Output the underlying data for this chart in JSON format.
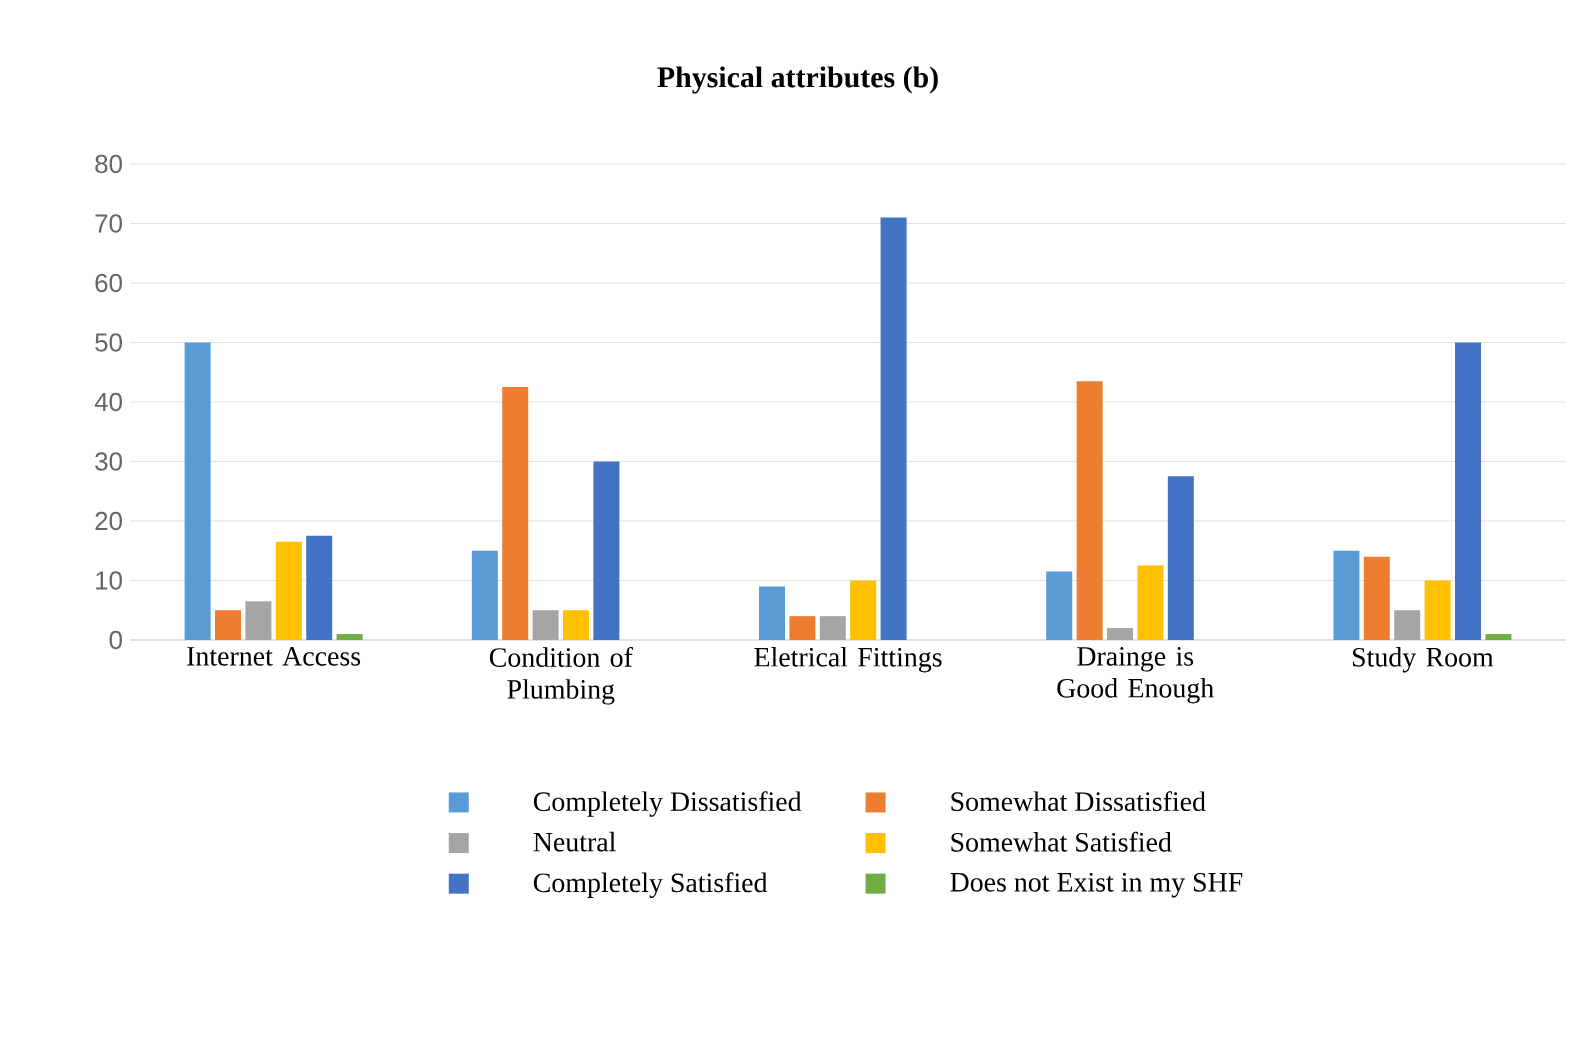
{
  "chart_data": {
    "type": "bar",
    "title": "Physical attributes (b)",
    "categories": [
      "Internet Access",
      "Condition of Plumbing",
      "Eletrical Fittings",
      "Drainge is Good Enough",
      "Study Room"
    ],
    "series": [
      {
        "name": "Completely Dissatisfied",
        "color": "#5b9bd5",
        "values": [
          50,
          15,
          9,
          11.5,
          15
        ]
      },
      {
        "name": "Somewhat Dissatisfied",
        "color": "#ed7d31",
        "values": [
          5,
          42.5,
          4,
          43.5,
          14
        ]
      },
      {
        "name": "Neutral",
        "color": "#a5a5a5",
        "values": [
          6.5,
          5,
          4,
          2,
          5
        ]
      },
      {
        "name": "Somewhat Satisfied",
        "color": "#ffc000",
        "values": [
          16.5,
          5,
          10,
          12.5,
          10
        ]
      },
      {
        "name": "Completely Satisfied",
        "color": "#4472c4",
        "values": [
          17.5,
          30,
          71,
          27.5,
          50
        ]
      },
      {
        "name": "Does not Exist in my SHF",
        "color": "#70ad47",
        "values": [
          1,
          0,
          0,
          0,
          1
        ]
      }
    ],
    "ylim": [
      0,
      80
    ],
    "yticks": [
      0,
      10,
      20,
      30,
      40,
      50,
      60,
      70,
      80
    ],
    "grid": "y",
    "legend": "bottom"
  }
}
